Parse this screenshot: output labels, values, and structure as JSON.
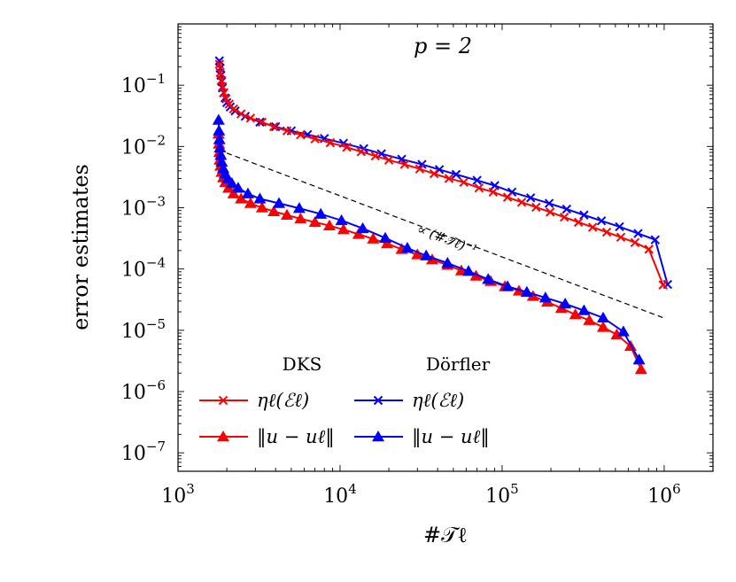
{
  "chart_data": {
    "type": "line",
    "title": "p = 2",
    "xlabel": "#𝒯ℓ",
    "ylabel": "error estimates",
    "xscale": "log",
    "yscale": "log",
    "xlim": [
      1000,
      2000000
    ],
    "ylim": [
      5e-08,
      1.0
    ],
    "x_ticks": [
      {
        "value": 1000,
        "base": "10",
        "exp": "3"
      },
      {
        "value": 10000,
        "base": "10",
        "exp": "4"
      },
      {
        "value": 100000,
        "base": "10",
        "exp": "5"
      },
      {
        "value": 1000000,
        "base": "10",
        "exp": "6"
      }
    ],
    "y_ticks": [
      {
        "value": 0.1,
        "base": "10",
        "exp": "−1"
      },
      {
        "value": 0.01,
        "base": "10",
        "exp": "−2"
      },
      {
        "value": 0.001,
        "base": "10",
        "exp": "−3"
      },
      {
        "value": 0.0001,
        "base": "10",
        "exp": "−4"
      },
      {
        "value": 1e-05,
        "base": "10",
        "exp": "−5"
      },
      {
        "value": 1e-06,
        "base": "10",
        "exp": "−6"
      },
      {
        "value": 1e-07,
        "base": "10",
        "exp": "−7"
      }
    ],
    "grid": false,
    "legend_position": "bottom-left",
    "legend_headers": [
      "DKS",
      "Dörfler"
    ],
    "series": [
      {
        "name": "ηℓ(ℰℓ)",
        "group": "Dörfler",
        "color": "#0000ff",
        "marker": "x",
        "points": [
          [
            1800,
            0.25
          ],
          [
            1820,
            0.19
          ],
          [
            1840,
            0.145
          ],
          [
            1860,
            0.115
          ],
          [
            1880,
            0.09
          ],
          [
            1910,
            0.075
          ],
          [
            1950,
            0.062
          ],
          [
            2000,
            0.052
          ],
          [
            2100,
            0.044
          ],
          [
            2250,
            0.038
          ],
          [
            2600,
            0.031
          ],
          [
            3200,
            0.025
          ],
          [
            4000,
            0.021
          ],
          [
            5000,
            0.018
          ],
          [
            6300,
            0.0157
          ],
          [
            8000,
            0.0135
          ],
          [
            10500,
            0.0113
          ],
          [
            14000,
            0.0092
          ],
          [
            18000,
            0.0076
          ],
          [
            24000,
            0.0062
          ],
          [
            32000,
            0.0051
          ],
          [
            41000,
            0.0042
          ],
          [
            52000,
            0.0035
          ],
          [
            70000,
            0.0028
          ],
          [
            90000,
            0.0023
          ],
          [
            115000,
            0.0018
          ],
          [
            150000,
            0.00145
          ],
          [
            195000,
            0.00118
          ],
          [
            250000,
            0.00095
          ],
          [
            320000,
            0.00076
          ],
          [
            410000,
            0.00061
          ],
          [
            530000,
            0.00049
          ],
          [
            690000,
            0.00038
          ],
          [
            880000,
            0.0003
          ],
          [
            1050000,
            5.6e-05
          ]
        ]
      },
      {
        "name": "ηℓ(ℰℓ)",
        "group": "DKS",
        "color": "#ff0000",
        "marker": "x",
        "points": [
          [
            1800,
            0.22
          ],
          [
            1820,
            0.16
          ],
          [
            1850,
            0.12
          ],
          [
            1880,
            0.095
          ],
          [
            1920,
            0.075
          ],
          [
            1980,
            0.06
          ],
          [
            2070,
            0.049
          ],
          [
            2200,
            0.041
          ],
          [
            2450,
            0.034
          ],
          [
            2800,
            0.029
          ],
          [
            3300,
            0.025
          ],
          [
            3900,
            0.021
          ],
          [
            4700,
            0.018
          ],
          [
            5700,
            0.0155
          ],
          [
            7000,
            0.0133
          ],
          [
            8700,
            0.0115
          ],
          [
            11000,
            0.0097
          ],
          [
            13500,
            0.0082
          ],
          [
            16500,
            0.007
          ],
          [
            20000,
            0.006
          ],
          [
            25000,
            0.0051
          ],
          [
            31000,
            0.0043
          ],
          [
            38000,
            0.0036
          ],
          [
            47000,
            0.003
          ],
          [
            58000,
            0.0026
          ],
          [
            72000,
            0.0021
          ],
          [
            88000,
            0.0018
          ],
          [
            108000,
            0.00148
          ],
          [
            132000,
            0.00123
          ],
          [
            162000,
            0.00102
          ],
          [
            198000,
            0.00085
          ],
          [
            242000,
            0.0007
          ],
          [
            296000,
            0.00058
          ],
          [
            362000,
            0.00048
          ],
          [
            442000,
            0.0004
          ],
          [
            540000,
            0.00033
          ],
          [
            660000,
            0.00027
          ],
          [
            805000,
            0.00021
          ],
          [
            985000,
            5.5e-05
          ]
        ]
      },
      {
        "name": "‖u − uℓ‖",
        "group": "DKS",
        "color": "#ff0000",
        "marker": "triangle",
        "points": [
          [
            1780,
            0.016
          ],
          [
            1790,
            0.011
          ],
          [
            1800,
            0.008
          ],
          [
            1810,
            0.006
          ],
          [
            1830,
            0.0048
          ],
          [
            1860,
            0.0038
          ],
          [
            1900,
            0.0031
          ],
          [
            1960,
            0.0026
          ],
          [
            2050,
            0.0021
          ],
          [
            2200,
            0.0017
          ],
          [
            2450,
            0.0014
          ],
          [
            2800,
            0.00118
          ],
          [
            3300,
            0.001
          ],
          [
            3900,
            0.00087
          ],
          [
            4700,
            0.00076
          ],
          [
            5700,
            0.00066
          ],
          [
            7000,
            0.00058
          ],
          [
            8600,
            0.00051
          ],
          [
            10500,
            0.00044
          ],
          [
            13000,
            0.00037
          ],
          [
            16000,
            0.00031
          ],
          [
            19500,
            0.00026
          ],
          [
            24000,
            0.00021
          ],
          [
            30000,
            0.000172
          ],
          [
            37000,
            0.000142
          ],
          [
            46000,
            0.000116
          ],
          [
            56000,
            9.4e-05
          ],
          [
            69000,
            7.7e-05
          ],
          [
            85000,
            6.3e-05
          ],
          [
            104000,
            5.2e-05
          ],
          [
            127000,
            4.4e-05
          ],
          [
            155000,
            3.6e-05
          ],
          [
            190000,
            2.9e-05
          ],
          [
            232000,
            2.3e-05
          ],
          [
            283000,
            1.8e-05
          ],
          [
            345000,
            1.45e-05
          ],
          [
            420000,
            1.12e-05
          ],
          [
            510000,
            8.5e-06
          ],
          [
            620000,
            5.5e-06
          ],
          [
            720000,
            2.3e-06
          ]
        ]
      },
      {
        "name": "‖u − uℓ‖",
        "group": "Dörfler",
        "color": "#0000ff",
        "marker": "triangle",
        "points": [
          [
            1780,
            0.027
          ],
          [
            1790,
            0.018
          ],
          [
            1800,
            0.013
          ],
          [
            1815,
            0.0095
          ],
          [
            1835,
            0.0072
          ],
          [
            1860,
            0.0056
          ],
          [
            1900,
            0.0044
          ],
          [
            1950,
            0.0036
          ],
          [
            2030,
            0.003
          ],
          [
            2150,
            0.0025
          ],
          [
            2350,
            0.0021
          ],
          [
            2700,
            0.0017
          ],
          [
            3200,
            0.0014
          ],
          [
            4200,
            0.00118
          ],
          [
            5600,
            0.00098
          ],
          [
            7600,
            0.00079
          ],
          [
            10200,
            0.00062
          ],
          [
            13800,
            0.00046
          ],
          [
            19000,
            0.00032
          ],
          [
            26000,
            0.00022
          ],
          [
            34000,
            0.000165
          ],
          [
            46000,
            0.000125
          ],
          [
            62000,
            9.2e-05
          ],
          [
            82000,
            6.8e-05
          ],
          [
            108000,
            5.2e-05
          ],
          [
            142000,
            4.2e-05
          ],
          [
            185000,
            3.4e-05
          ],
          [
            245000,
            2.7e-05
          ],
          [
            320000,
            2.1e-05
          ],
          [
            420000,
            1.6e-05
          ],
          [
            560000,
            9.5e-06
          ],
          [
            700000,
            3.3e-06
          ]
        ]
      }
    ],
    "reference_line": {
      "label": "∝ (#𝒯ℓ)⁻¹",
      "style": "dashed",
      "color": "#000000",
      "points": [
        [
          2000,
          0.0078
        ],
        [
          1000000,
          1.58e-05
        ]
      ]
    }
  }
}
